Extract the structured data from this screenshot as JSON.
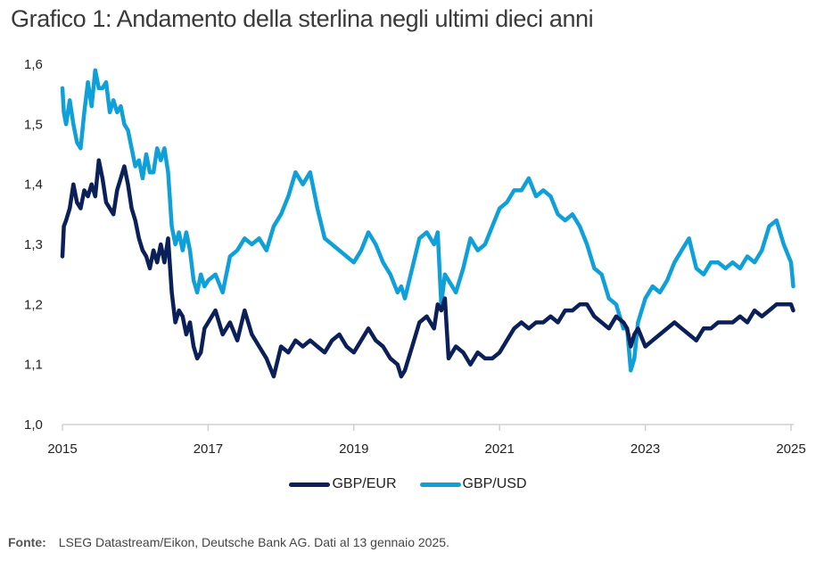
{
  "title": "Grafico 1: Andamento della sterlina negli ultimi dieci anni",
  "source_label": "Fonte:",
  "source_text": "LSEG Datastream/Eikon, Deutsche Bank AG. Dati al 13 gennaio 2025.",
  "colors": {
    "gbp_eur": "#0b2059",
    "gbp_usd": "#0fa0d9",
    "axis": "#d0d0d0"
  },
  "chart_data": {
    "type": "line",
    "title": "Grafico 1: Andamento della sterlina negli ultimi dieci anni",
    "xlabel": "",
    "ylabel": "",
    "xlim": [
      2015,
      2025.05
    ],
    "ylim": [
      1.0,
      1.6
    ],
    "grid": false,
    "legend_position": "bottom-center",
    "x_ticks": [
      2015,
      2017,
      2019,
      2021,
      2023,
      2025
    ],
    "x_tick_labels": [
      "2015",
      "2017",
      "2019",
      "2021",
      "2023",
      "2025"
    ],
    "y_ticks": [
      1.0,
      1.1,
      1.2,
      1.3,
      1.4,
      1.5,
      1.6
    ],
    "y_tick_labels": [
      "1,0",
      "1,1",
      "1,2",
      "1,3",
      "1,4",
      "1,5",
      "1,6"
    ],
    "series": [
      {
        "name": "GBP/EUR",
        "color": "#0b2059",
        "x": [
          2015.0,
          2015.02,
          2015.05,
          2015.1,
          2015.15,
          2015.2,
          2015.25,
          2015.3,
          2015.35,
          2015.4,
          2015.45,
          2015.5,
          2015.55,
          2015.6,
          2015.65,
          2015.7,
          2015.75,
          2015.8,
          2015.85,
          2015.9,
          2015.95,
          2016.0,
          2016.05,
          2016.1,
          2016.15,
          2016.2,
          2016.25,
          2016.3,
          2016.35,
          2016.4,
          2016.45,
          2016.5,
          2016.55,
          2016.6,
          2016.65,
          2016.7,
          2016.75,
          2016.8,
          2016.85,
          2016.9,
          2016.95,
          2017.0,
          2017.1,
          2017.2,
          2017.3,
          2017.4,
          2017.5,
          2017.6,
          2017.7,
          2017.8,
          2017.9,
          2018.0,
          2018.1,
          2018.2,
          2018.3,
          2018.4,
          2018.5,
          2018.6,
          2018.7,
          2018.8,
          2018.9,
          2019.0,
          2019.1,
          2019.2,
          2019.3,
          2019.4,
          2019.5,
          2019.6,
          2019.65,
          2019.7,
          2019.8,
          2019.9,
          2020.0,
          2020.1,
          2020.15,
          2020.2,
          2020.25,
          2020.3,
          2020.4,
          2020.5,
          2020.6,
          2020.7,
          2020.8,
          2020.9,
          2021.0,
          2021.1,
          2021.2,
          2021.3,
          2021.4,
          2021.5,
          2021.6,
          2021.7,
          2021.8,
          2021.9,
          2022.0,
          2022.1,
          2022.2,
          2022.3,
          2022.4,
          2022.5,
          2022.6,
          2022.7,
          2022.75,
          2022.8,
          2022.85,
          2022.9,
          2023.0,
          2023.1,
          2023.2,
          2023.3,
          2023.4,
          2023.5,
          2023.6,
          2023.7,
          2023.8,
          2023.9,
          2024.0,
          2024.1,
          2024.2,
          2024.3,
          2024.4,
          2024.5,
          2024.6,
          2024.7,
          2024.8,
          2024.9,
          2025.0,
          2025.03
        ],
        "y": [
          1.28,
          1.33,
          1.34,
          1.36,
          1.4,
          1.37,
          1.36,
          1.39,
          1.38,
          1.4,
          1.38,
          1.44,
          1.41,
          1.37,
          1.36,
          1.35,
          1.39,
          1.41,
          1.43,
          1.4,
          1.36,
          1.34,
          1.31,
          1.29,
          1.28,
          1.26,
          1.29,
          1.27,
          1.3,
          1.27,
          1.31,
          1.22,
          1.17,
          1.19,
          1.18,
          1.15,
          1.17,
          1.13,
          1.11,
          1.12,
          1.16,
          1.17,
          1.19,
          1.15,
          1.17,
          1.14,
          1.19,
          1.15,
          1.13,
          1.11,
          1.08,
          1.13,
          1.12,
          1.14,
          1.13,
          1.14,
          1.13,
          1.12,
          1.14,
          1.15,
          1.13,
          1.12,
          1.14,
          1.16,
          1.14,
          1.13,
          1.11,
          1.1,
          1.08,
          1.09,
          1.13,
          1.17,
          1.18,
          1.16,
          1.2,
          1.19,
          1.21,
          1.11,
          1.13,
          1.12,
          1.1,
          1.12,
          1.11,
          1.11,
          1.12,
          1.14,
          1.16,
          1.17,
          1.16,
          1.17,
          1.17,
          1.18,
          1.17,
          1.19,
          1.19,
          1.2,
          1.2,
          1.18,
          1.17,
          1.16,
          1.18,
          1.17,
          1.16,
          1.13,
          1.15,
          1.16,
          1.13,
          1.14,
          1.15,
          1.16,
          1.17,
          1.16,
          1.15,
          1.14,
          1.16,
          1.16,
          1.17,
          1.17,
          1.17,
          1.18,
          1.17,
          1.19,
          1.18,
          1.19,
          1.2,
          1.2,
          1.2,
          1.19
        ]
      },
      {
        "name": "GBP/USD",
        "color": "#0fa0d9",
        "x": [
          2015.0,
          2015.02,
          2015.05,
          2015.1,
          2015.15,
          2015.2,
          2015.25,
          2015.3,
          2015.35,
          2015.4,
          2015.45,
          2015.5,
          2015.55,
          2015.6,
          2015.65,
          2015.7,
          2015.75,
          2015.8,
          2015.85,
          2015.9,
          2015.95,
          2016.0,
          2016.05,
          2016.1,
          2016.15,
          2016.2,
          2016.25,
          2016.3,
          2016.35,
          2016.4,
          2016.45,
          2016.5,
          2016.55,
          2016.6,
          2016.65,
          2016.7,
          2016.75,
          2016.8,
          2016.85,
          2016.9,
          2016.95,
          2017.0,
          2017.1,
          2017.2,
          2017.3,
          2017.4,
          2017.5,
          2017.6,
          2017.7,
          2017.8,
          2017.9,
          2018.0,
          2018.1,
          2018.2,
          2018.3,
          2018.4,
          2018.5,
          2018.6,
          2018.7,
          2018.8,
          2018.9,
          2019.0,
          2019.1,
          2019.2,
          2019.3,
          2019.4,
          2019.5,
          2019.6,
          2019.65,
          2019.7,
          2019.8,
          2019.9,
          2020.0,
          2020.1,
          2020.15,
          2020.2,
          2020.25,
          2020.3,
          2020.4,
          2020.5,
          2020.6,
          2020.7,
          2020.8,
          2020.9,
          2021.0,
          2021.1,
          2021.2,
          2021.3,
          2021.4,
          2021.5,
          2021.6,
          2021.7,
          2021.8,
          2021.9,
          2022.0,
          2022.1,
          2022.2,
          2022.3,
          2022.4,
          2022.5,
          2022.6,
          2022.7,
          2022.75,
          2022.8,
          2022.85,
          2022.9,
          2023.0,
          2023.1,
          2023.2,
          2023.3,
          2023.4,
          2023.5,
          2023.6,
          2023.7,
          2023.8,
          2023.9,
          2024.0,
          2024.1,
          2024.2,
          2024.3,
          2024.4,
          2024.5,
          2024.6,
          2024.7,
          2024.8,
          2024.9,
          2025.0,
          2025.03
        ],
        "y": [
          1.56,
          1.52,
          1.5,
          1.54,
          1.5,
          1.47,
          1.46,
          1.52,
          1.57,
          1.53,
          1.59,
          1.56,
          1.56,
          1.57,
          1.52,
          1.54,
          1.52,
          1.53,
          1.5,
          1.49,
          1.46,
          1.43,
          1.44,
          1.41,
          1.45,
          1.42,
          1.42,
          1.46,
          1.44,
          1.46,
          1.42,
          1.33,
          1.3,
          1.32,
          1.29,
          1.32,
          1.29,
          1.24,
          1.22,
          1.25,
          1.23,
          1.24,
          1.25,
          1.22,
          1.28,
          1.29,
          1.31,
          1.3,
          1.31,
          1.29,
          1.33,
          1.35,
          1.38,
          1.42,
          1.4,
          1.42,
          1.36,
          1.31,
          1.3,
          1.29,
          1.28,
          1.27,
          1.29,
          1.32,
          1.3,
          1.27,
          1.25,
          1.22,
          1.23,
          1.21,
          1.26,
          1.31,
          1.32,
          1.3,
          1.32,
          1.2,
          1.25,
          1.24,
          1.22,
          1.26,
          1.31,
          1.29,
          1.3,
          1.33,
          1.36,
          1.37,
          1.39,
          1.39,
          1.41,
          1.38,
          1.39,
          1.38,
          1.35,
          1.34,
          1.35,
          1.33,
          1.3,
          1.26,
          1.25,
          1.21,
          1.2,
          1.16,
          1.16,
          1.09,
          1.11,
          1.17,
          1.21,
          1.23,
          1.22,
          1.24,
          1.27,
          1.29,
          1.31,
          1.26,
          1.25,
          1.27,
          1.27,
          1.26,
          1.27,
          1.26,
          1.28,
          1.27,
          1.29,
          1.33,
          1.34,
          1.3,
          1.27,
          1.23
        ]
      }
    ]
  },
  "legend": {
    "items": [
      {
        "label": "GBP/EUR"
      },
      {
        "label": "GBP/USD"
      }
    ]
  }
}
